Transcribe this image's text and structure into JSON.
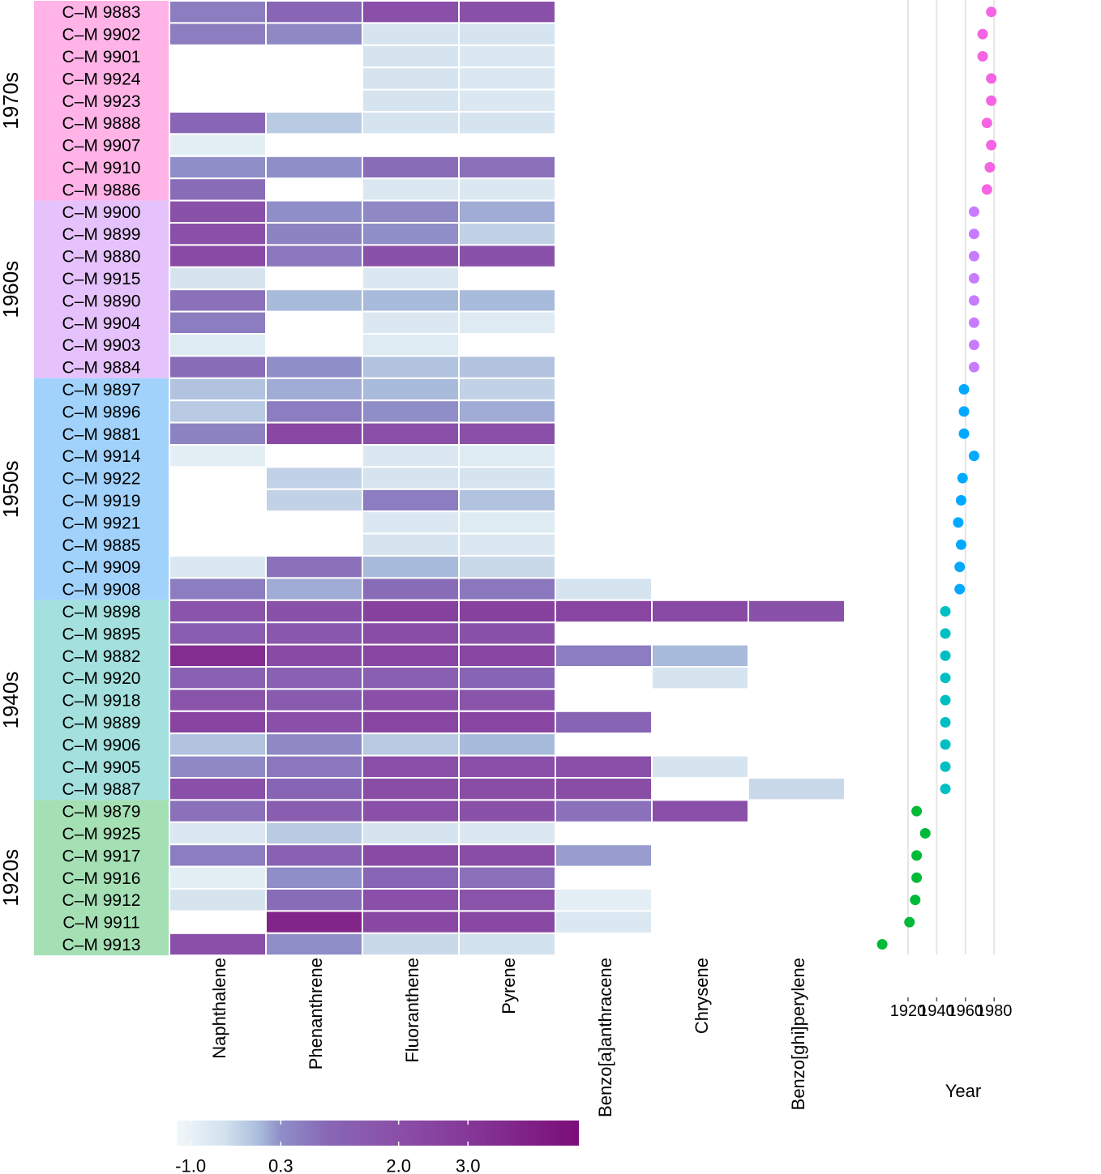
{
  "chart_data": [
    {
      "type": "heatmap",
      "title": "",
      "columns": [
        "Naphthalene",
        "Phenanthrene",
        "Fluoranthene",
        "Pyrene",
        "Benzo[a]anthracene",
        "Chrysene",
        "Benzo[ghi]perylene"
      ],
      "groups": [
        {
          "label": "1970s",
          "color": "#ffb3e6",
          "dot_color": "#f564e3",
          "samples": [
            {
              "id": "C–M 9883",
              "year": 1978,
              "values": [
                0.6,
                1.0,
                2.0,
                1.9,
                null,
                null,
                null
              ]
            },
            {
              "id": "C–M 9902",
              "year": 1972,
              "values": [
                0.6,
                0.4,
                -0.6,
                -0.6,
                null,
                null,
                null
              ]
            },
            {
              "id": "C–M 9901",
              "year": 1972,
              "values": [
                null,
                null,
                -0.6,
                -0.7,
                null,
                null,
                null
              ]
            },
            {
              "id": "C–M 9924",
              "year": 1978,
              "values": [
                null,
                null,
                -0.6,
                -0.7,
                null,
                null,
                null
              ]
            },
            {
              "id": "C–M 9923",
              "year": 1978,
              "values": [
                null,
                null,
                -0.6,
                -0.7,
                null,
                null,
                null
              ]
            },
            {
              "id": "C–M 9888",
              "year": 1975,
              "values": [
                1.0,
                -0.2,
                -0.6,
                -0.6,
                null,
                null,
                null
              ]
            },
            {
              "id": "C–M 9907",
              "year": 1978,
              "values": [
                -0.9,
                null,
                null,
                null,
                null,
                null,
                null
              ]
            },
            {
              "id": "C–M 9910",
              "year": 1977,
              "values": [
                0.3,
                0.3,
                0.9,
                0.8,
                null,
                null,
                null
              ]
            },
            {
              "id": "C–M 9886",
              "year": 1975,
              "values": [
                0.9,
                null,
                -0.7,
                -0.7,
                null,
                null,
                null
              ]
            }
          ]
        },
        {
          "label": "1960s",
          "color": "#e5c2fb",
          "dot_color": "#c77cff",
          "samples": [
            {
              "id": "C–M 9900",
              "year": 1966,
              "values": [
                1.9,
                0.3,
                0.4,
                0.1,
                null,
                null,
                null
              ]
            },
            {
              "id": "C–M 9899",
              "year": 1966,
              "values": [
                2.0,
                0.5,
                0.3,
                -0.3,
                null,
                null,
                null
              ]
            },
            {
              "id": "C–M 9880",
              "year": 1966,
              "values": [
                2.2,
                0.7,
                1.9,
                1.9,
                null,
                null,
                null
              ]
            },
            {
              "id": "C–M 9915",
              "year": 1966,
              "values": [
                -0.6,
                null,
                -0.7,
                null,
                null,
                null,
                null
              ]
            },
            {
              "id": "C–M 9890",
              "year": 1966,
              "values": [
                0.8,
                0.0,
                0.0,
                0.0,
                null,
                null,
                null
              ]
            },
            {
              "id": "C–M 9904",
              "year": 1966,
              "values": [
                0.6,
                null,
                -0.7,
                -0.8,
                null,
                null,
                null
              ]
            },
            {
              "id": "C–M 9903",
              "year": 1966,
              "values": [
                -0.8,
                null,
                -0.8,
                null,
                null,
                null,
                null
              ]
            },
            {
              "id": "C–M 9884",
              "year": 1966,
              "values": [
                0.9,
                0.3,
                -0.1,
                -0.1,
                null,
                null,
                null
              ]
            }
          ]
        },
        {
          "label": "1950s",
          "color": "#a1d2fc",
          "dot_color": "#00a9ff",
          "samples": [
            {
              "id": "C–M 9897",
              "year": 1959,
              "values": [
                -0.1,
                0.1,
                0.0,
                -0.3,
                null,
                null,
                null
              ]
            },
            {
              "id": "C–M 9896",
              "year": 1959,
              "values": [
                -0.2,
                0.6,
                0.3,
                0.1,
                null,
                null,
                null
              ]
            },
            {
              "id": "C–M 9881",
              "year": 1959,
              "values": [
                0.5,
                2.3,
                2.0,
                2.0,
                null,
                null,
                null
              ]
            },
            {
              "id": "C–M 9914",
              "year": 1966,
              "values": [
                -0.9,
                null,
                -0.7,
                -0.8,
                null,
                null,
                null
              ]
            },
            {
              "id": "C–M 9922",
              "year": 1958,
              "values": [
                null,
                -0.3,
                -0.6,
                -0.6,
                null,
                null,
                null
              ]
            },
            {
              "id": "C–M 9919",
              "year": 1957,
              "values": [
                null,
                -0.3,
                0.6,
                -0.1,
                null,
                null,
                null
              ]
            },
            {
              "id": "C–M 9921",
              "year": 1955,
              "values": [
                null,
                null,
                -0.7,
                -0.8,
                null,
                null,
                null
              ]
            },
            {
              "id": "C–M 9885",
              "year": 1957,
              "values": [
                null,
                null,
                -0.6,
                -0.7,
                null,
                null,
                null
              ]
            },
            {
              "id": "C–M 9909",
              "year": 1956,
              "values": [
                -0.7,
                0.8,
                0.0,
                -0.4,
                null,
                null,
                null
              ]
            },
            {
              "id": "C–M 9908",
              "year": 1956,
              "values": [
                0.6,
                0.1,
                0.9,
                0.7,
                -0.6,
                null,
                null
              ]
            }
          ]
        },
        {
          "label": "1940s",
          "color": "#a3e0de",
          "dot_color": "#00bfc4",
          "samples": [
            {
              "id": "C–M 9898",
              "year": 1946,
              "values": [
                1.8,
                1.9,
                2.6,
                2.6,
                2.4,
                2.2,
                1.9
              ]
            },
            {
              "id": "C–M 9895",
              "year": 1946,
              "values": [
                1.4,
                1.6,
                2.1,
                1.9,
                null,
                null,
                null
              ]
            },
            {
              "id": "C–M 9882",
              "year": 1946,
              "values": [
                3.4,
                2.2,
                2.4,
                2.4,
                0.6,
                0.0,
                null
              ]
            },
            {
              "id": "C–M 9920",
              "year": 1946,
              "values": [
                1.2,
                1.2,
                1.3,
                1.1,
                null,
                -0.6,
                null
              ]
            },
            {
              "id": "C–M 9918",
              "year": 1946,
              "values": [
                1.8,
                1.5,
                2.0,
                1.8,
                null,
                null,
                null
              ]
            },
            {
              "id": "C–M 9889",
              "year": 1946,
              "values": [
                2.5,
                2.0,
                2.4,
                2.4,
                1.1,
                null,
                null
              ]
            },
            {
              "id": "C–M 9906",
              "year": 1946,
              "values": [
                -0.1,
                0.4,
                -0.2,
                0.0,
                null,
                null,
                null
              ]
            },
            {
              "id": "C–M 9905",
              "year": 1946,
              "values": [
                0.4,
                0.7,
                2.0,
                2.0,
                2.0,
                -0.6,
                null
              ]
            },
            {
              "id": "C–M 9887",
              "year": 1946,
              "values": [
                2.0,
                1.1,
                2.1,
                2.1,
                2.1,
                null,
                -0.4
              ]
            }
          ]
        },
        {
          "label": "1920s",
          "color": "#a5e0b5",
          "dot_color": "#00ba38",
          "samples": [
            {
              "id": "C–M 9879",
              "year": 1926,
              "values": [
                0.8,
                1.4,
                2.0,
                1.9,
                0.8,
                2.0,
                null
              ]
            },
            {
              "id": "C–M 9925",
              "year": 1932,
              "values": [
                -0.7,
                -0.2,
                -0.6,
                -0.7,
                null,
                null,
                null
              ]
            },
            {
              "id": "C–M 9917",
              "year": 1926,
              "values": [
                0.6,
                1.2,
                2.2,
                2.1,
                0.2,
                null,
                null
              ]
            },
            {
              "id": "C–M 9916",
              "year": 1926,
              "values": [
                -0.9,
                0.3,
                1.0,
                0.8,
                null,
                null,
                null
              ]
            },
            {
              "id": "C–M 9912",
              "year": 1925,
              "values": [
                -0.6,
                0.9,
                2.0,
                1.8,
                -0.9,
                null,
                null
              ]
            },
            {
              "id": "C–M 9911",
              "year": 1921,
              "values": [
                null,
                3.7,
                2.3,
                2.3,
                -0.7,
                null,
                null
              ]
            },
            {
              "id": "C–M 9913",
              "year": 1902,
              "values": [
                2.0,
                0.3,
                -0.4,
                -0.5,
                null,
                null,
                null
              ]
            }
          ]
        }
      ],
      "colorbar": {
        "ticks": [
          -1.0,
          0.3,
          2.0,
          3.0
        ],
        "tick_labels": [
          "-1.0",
          "0.3",
          "2.0",
          "3.0"
        ],
        "range": [
          -1.2,
          4.6
        ],
        "gradient": [
          {
            "v": -1.2,
            "c": "#f1f8fa"
          },
          {
            "v": -0.5,
            "c": "#d2e1ee"
          },
          {
            "v": 0.0,
            "c": "#a9bbdb"
          },
          {
            "v": 0.3,
            "c": "#8f8ec8"
          },
          {
            "v": 1.0,
            "c": "#8866b5"
          },
          {
            "v": 2.0,
            "c": "#8a4fa8"
          },
          {
            "v": 3.0,
            "c": "#853898"
          },
          {
            "v": 4.6,
            "c": "#7b0d79"
          }
        ]
      }
    },
    {
      "type": "scatter",
      "xlabel": "Year",
      "ylabel": "",
      "xlim": [
        1900,
        1980
      ],
      "xticks": [
        1920,
        1940,
        1960,
        1980
      ],
      "xtick_labels": [
        "1920",
        "1940",
        "1960",
        "1980"
      ],
      "grid": true,
      "note": "one point per sample row, year on x-axis, colored by decade group"
    }
  ]
}
